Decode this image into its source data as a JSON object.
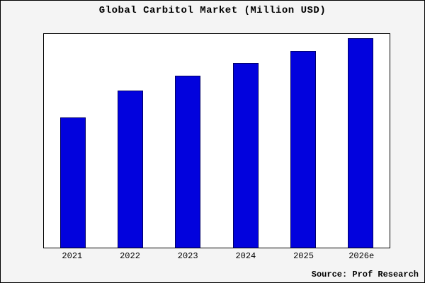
{
  "title": "Global Carbitol Market (Million USD)",
  "source": "Source: Prof Research",
  "colors": {
    "bar": "#0202dd",
    "bar_border": "#000066",
    "background": "#f4f4f4",
    "plot_background": "#ffffff",
    "frame_border": "#000000"
  },
  "chart_data": {
    "type": "bar",
    "title": "Global Carbitol Market (Million USD)",
    "categories": [
      "2021",
      "2022",
      "2023",
      "2024",
      "2025",
      "2026e"
    ],
    "values": [
      62,
      75,
      82,
      88,
      94,
      100
    ],
    "xlabel": "",
    "ylabel": "",
    "ylim": [
      0,
      102
    ],
    "grid": false,
    "legend": false,
    "y_axis_labeled": false,
    "annotation": "Source: Prof Research"
  }
}
